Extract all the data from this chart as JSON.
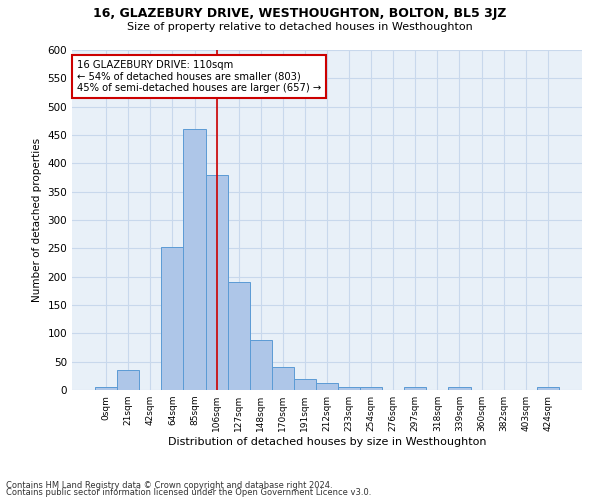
{
  "title": "16, GLAZEBURY DRIVE, WESTHOUGHTON, BOLTON, BL5 3JZ",
  "subtitle": "Size of property relative to detached houses in Westhoughton",
  "xlabel": "Distribution of detached houses by size in Westhoughton",
  "ylabel": "Number of detached properties",
  "footnote1": "Contains HM Land Registry data © Crown copyright and database right 2024.",
  "footnote2": "Contains public sector information licensed under the Open Government Licence v3.0.",
  "bar_labels": [
    "0sqm",
    "21sqm",
    "42sqm",
    "64sqm",
    "85sqm",
    "106sqm",
    "127sqm",
    "148sqm",
    "170sqm",
    "191sqm",
    "212sqm",
    "233sqm",
    "254sqm",
    "276sqm",
    "297sqm",
    "318sqm",
    "339sqm",
    "360sqm",
    "382sqm",
    "403sqm",
    "424sqm"
  ],
  "bar_values": [
    5,
    35,
    0,
    252,
    460,
    380,
    190,
    88,
    40,
    20,
    12,
    6,
    6,
    0,
    5,
    0,
    5,
    0,
    0,
    0,
    5
  ],
  "bar_color": "#aec6e8",
  "bar_edge_color": "#5b9bd5",
  "grid_color": "#c8d8ec",
  "background_color": "#e8f0f8",
  "vline_bin_index": 5,
  "annotation_text1": "16 GLAZEBURY DRIVE: 110sqm",
  "annotation_text2": "← 54% of detached houses are smaller (803)",
  "annotation_text3": "45% of semi-detached houses are larger (657) →",
  "annotation_box_color": "#ffffff",
  "annotation_edge_color": "#cc0000",
  "vline_color": "#cc0000",
  "ylim": [
    0,
    600
  ],
  "yticks": [
    0,
    50,
    100,
    150,
    200,
    250,
    300,
    350,
    400,
    450,
    500,
    550,
    600
  ]
}
